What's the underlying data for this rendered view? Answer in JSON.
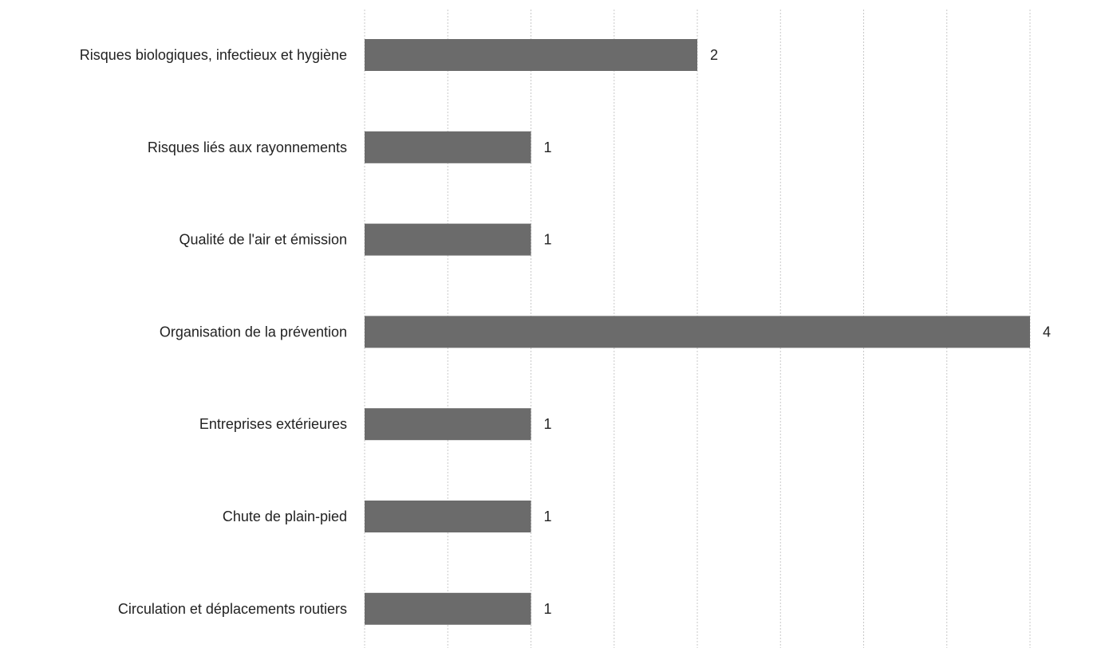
{
  "colors": {
    "bar": "#6b6b6b",
    "grid": "#c8c8c8",
    "text": "#222222",
    "background": "#ffffff"
  },
  "chart_data": {
    "type": "bar",
    "orientation": "horizontal",
    "title": "",
    "xlabel": "",
    "ylabel": "",
    "xlim": [
      0,
      4
    ],
    "grid": true,
    "legend": "none",
    "categories": [
      "Risques biologiques, infectieux et hygiène",
      "Risques liés aux rayonnements",
      "Qualité de l'air et émission",
      "Organisation de la prévention",
      "Entreprises extérieures",
      "Chute de plain-pied",
      "Circulation et déplacements routiers"
    ],
    "values": [
      2,
      1,
      1,
      4,
      1,
      1,
      1
    ],
    "data_labels": [
      "2",
      "1",
      "1",
      "4",
      "1",
      "1",
      "1"
    ]
  }
}
